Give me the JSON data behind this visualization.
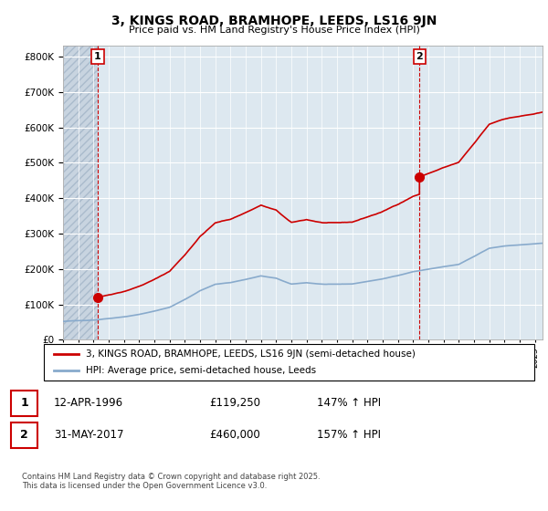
{
  "title": "3, KINGS ROAD, BRAMHOPE, LEEDS, LS16 9JN",
  "subtitle": "Price paid vs. HM Land Registry's House Price Index (HPI)",
  "yticks": [
    0,
    100000,
    200000,
    300000,
    400000,
    500000,
    600000,
    700000,
    800000
  ],
  "ylim": [
    0,
    830000
  ],
  "xlim_start": 1994.0,
  "xlim_end": 2025.5,
  "transaction1": {
    "year": 1996.28,
    "price": 119250,
    "label": "1"
  },
  "transaction2": {
    "year": 2017.42,
    "price": 460000,
    "label": "2"
  },
  "legend_line1": "3, KINGS ROAD, BRAMHOPE, LEEDS, LS16 9JN (semi-detached house)",
  "legend_line2": "HPI: Average price, semi-detached house, Leeds",
  "footnote": "Contains HM Land Registry data © Crown copyright and database right 2025.\nThis data is licensed under the Open Government Licence v3.0.",
  "property_color": "#cc0000",
  "hpi_color": "#88aacc",
  "bg_color": "#dde8f0",
  "hatch_color": "#c8d4e0",
  "grid_color": "#ffffff",
  "table_row1": {
    "num": "1",
    "date": "12-APR-1996",
    "price": "£119,250",
    "hpi": "147% ↑ HPI"
  },
  "table_row2": {
    "num": "2",
    "date": "31-MAY-2017",
    "price": "£460,000",
    "hpi": "157% ↑ HPI"
  }
}
